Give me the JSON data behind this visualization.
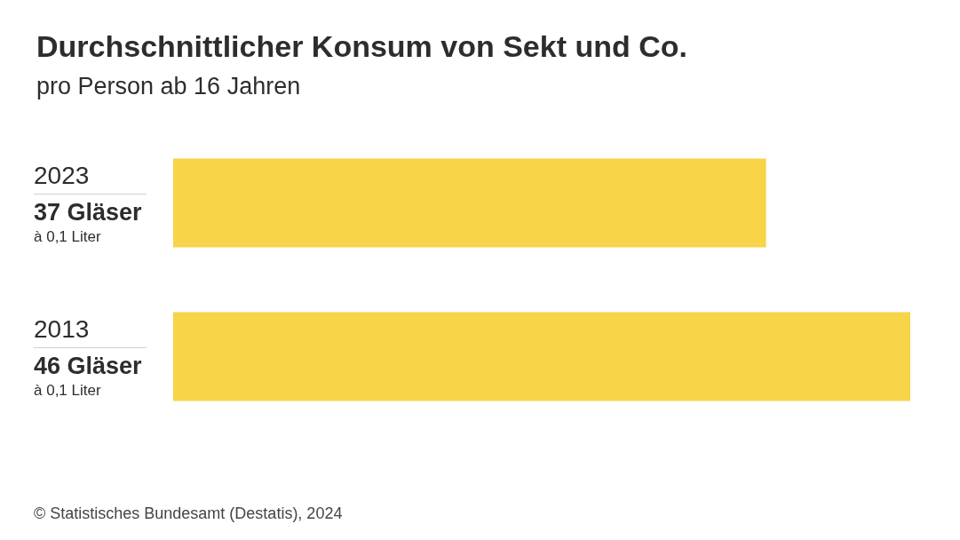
{
  "chart_data": {
    "type": "bar",
    "orientation": "horizontal",
    "title": "Durchschnittlicher Konsum von Sekt und Co.",
    "subtitle": "pro Person ab 16 Jahren",
    "categories": [
      "2023",
      "2013"
    ],
    "values": [
      37,
      46
    ],
    "value_labels": [
      "37 Gläser",
      "46 Gläser"
    ],
    "color": "#f7d448",
    "tick_labels": "y",
    "annotations": [
      "à 0,1 Liter",
      "à 0,1 Liter",
      "© Statistisches Bundesamt (Destatis), 2024"
    ]
  }
}
